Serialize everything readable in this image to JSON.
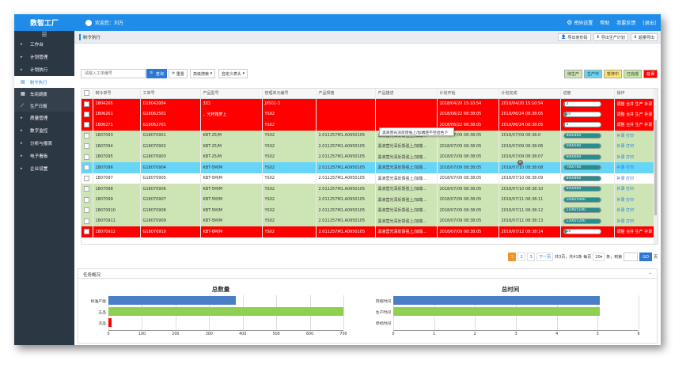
{
  "app": {
    "title": "数智工厂",
    "welcome": "欢迎您：刘万",
    "links": [
      "密码设置",
      "帮助",
      "我要反馈",
      "[退出]"
    ]
  },
  "sidebar": {
    "items": [
      {
        "label": "工作台"
      },
      {
        "label": "计划管理"
      },
      {
        "label": "计划执行",
        "expanded": true
      }
    ],
    "subitems": [
      {
        "label": "制令执行",
        "icon": "document-icon",
        "active": true
      },
      {
        "label": "车间调拨",
        "icon": "clipboard-icon"
      },
      {
        "label": "生产日报",
        "icon": "chart-line-icon"
      }
    ],
    "items2": [
      {
        "label": "质量管理"
      },
      {
        "label": "数字监控"
      },
      {
        "label": "分析与报表"
      },
      {
        "label": "电子看板"
      },
      {
        "label": "企业设置"
      }
    ]
  },
  "breadcrumb": "制令执行",
  "toolbar": {
    "export_sn": "导出条形码",
    "export_plan": "导出生产计划",
    "export_ahead": "超量导出"
  },
  "search": {
    "placeholder": "请输入工单编号",
    "query": "查询",
    "reset": "重置",
    "advanced": "高级搜索",
    "custom_header": "自定义表头"
  },
  "status_legend": [
    {
      "label": "待生产",
      "bg": "#cde5b5",
      "fg": "#333"
    },
    {
      "label": "生产中",
      "bg": "#66d5f7",
      "fg": "#333"
    },
    {
      "label": "暂停中",
      "bg": "#ffe26b",
      "fg": "#333"
    },
    {
      "label": "已完成",
      "bg": "#c5e7a6",
      "fg": "#333"
    },
    {
      "label": "延误",
      "bg": "#ff0000",
      "fg": "#fff"
    }
  ],
  "table": {
    "headers": [
      "制令单号",
      "工单号",
      "产品型号",
      "管理单元编号",
      "产品规格",
      "产品描述",
      "计划开始",
      "计划完成",
      "进度",
      "操作"
    ],
    "rows": [
      {
        "status": "red",
        "c": [
          "1804205",
          "D18042004",
          "333",
          "",
          "JXS01-3",
          "",
          "",
          "2018/04/20 15:10:54",
          "2018/04/20 15:10:54"
        ],
        "progress": "2",
        "pct": 4,
        "ops": "调整 合并 生产 补录 打印"
      },
      {
        "status": "red",
        "c": [
          "1806261",
          "G18062501",
          "，光杯箱萝上",
          "",
          "YS02",
          "",
          "",
          "2018/06/22 08:38:05",
          "2018/06/24 08:38:05"
        ],
        "progress": "10",
        "pct": 8,
        "ops": "调整 合并 生产 补录 打印"
      },
      {
        "status": "red",
        "c": [
          "1806271",
          "G18062701",
          "",
          "",
          "YS02",
          "",
          "",
          "2018/06/22 08:38:05",
          "2018/06/24 08:38:05"
        ],
        "progress": "2",
        "pct": 4,
        "ops": "调整 合并 生产 补录 打印"
      },
      {
        "status": "green",
        "c": [
          "1807093",
          "G18070901",
          "KBT-25/M",
          "",
          "YS02",
          "2.011257M1.A0950105",
          "黑液营光深反馈强上/加端...",
          "2018/07/09 08:38:05",
          "2018/07/09 08:38:0"
        ],
        "progress": "400/400",
        "pct": 100,
        "ops": "补录 打印"
      },
      {
        "status": "green",
        "c": [
          "1807094",
          "G18070902",
          "KBT-25/M",
          "",
          "YS02",
          "2.011257M1.A0950105",
          "黑液营光深反馈强上/加端...",
          "2018/07/09 08:38:05",
          "2018/07/09 08:38:06"
        ],
        "progress": "500/500",
        "pct": 100,
        "ops": "补录 打印"
      },
      {
        "status": "green",
        "c": [
          "1807095",
          "G18070903",
          "KBT-25/M",
          "",
          "YS02",
          "2.011257M1.A0950105",
          "黑液营光深反馈强上/加端...",
          "2018/07/09 08:38:05",
          "2018/07/09 08:38:07"
        ],
        "progress": "600/600",
        "pct": 100,
        "ops": "补录 打印"
      },
      {
        "status": "blue",
        "c": [
          "1807096",
          "G18070904",
          "KBT-5M/M",
          "",
          "YS02",
          "2.011257M1.A0950105",
          "黑液营光深反馈强上/加端...",
          "2018/07/09 08:38:05",
          "2018/07/10 08:38:08"
        ],
        "progress": "700/700",
        "pct": 100,
        "ops": "补录 打印"
      },
      {
        "status": "white",
        "c": [
          "1807097",
          "G18070905",
          "KBT-5M/M",
          "",
          "YS02",
          "2.011257M1.A0950105",
          "黑液营光深反馈强上/加端...",
          "2018/07/09 08:38:05",
          "2018/07/10 08:38:09"
        ],
        "progress": "800/800",
        "pct": 100,
        "ops": "补录 打印"
      },
      {
        "status": "green",
        "c": [
          "1807098",
          "G18070906",
          "KBT-5M/M",
          "",
          "YS02",
          "2.011257M1.A0950105",
          "黑液营光深反馈强上/加端...",
          "2018/07/09 08:38:05",
          "2018/07/10 08:38:10"
        ],
        "progress": "900/900",
        "pct": 100,
        "ops": "补录 打印"
      },
      {
        "status": "green",
        "c": [
          "1807099",
          "G18070907",
          "KBT-5M/M",
          "",
          "YS02",
          "2.011257M1.A0950105",
          "黑液营光深反馈强上/加端...",
          "2018/07/09 08:38:05",
          "2018/07/11 08:38:11"
        ],
        "progress": "1000/1000",
        "pct": 100,
        "ops": "补录 打印"
      },
      {
        "status": "green",
        "c": [
          "18070910",
          "G18070908",
          "KBT-5M/M",
          "",
          "YS02",
          "2.011257M1.A0950105",
          "黑液营光深反馈强上/加端...",
          "2018/07/09 08:38:05",
          "2018/07/11 08:38:12"
        ],
        "progress": "1100/1100",
        "pct": 100,
        "ops": "补录 打印"
      },
      {
        "status": "green",
        "c": [
          "18070911",
          "G18070909",
          "KBT-5M/M",
          "",
          "YS02",
          "2.011257M1.A0950105",
          "黑液营光深反馈强上/加端...",
          "2018/07/09 08:38:05",
          "2018/07/11 08:38:13"
        ],
        "progress": "1200/1200",
        "pct": 100,
        "ops": "补录 打印"
      },
      {
        "status": "red",
        "c": [
          "18070912",
          "G18070910",
          "KBT-6M/M",
          "",
          "YS02",
          "2.011257M1.A0950105",
          "黑液营光深反馈强上/加端...",
          "2018/07/09 08:38:05",
          "2018/07/12 08:38:14"
        ],
        "progress": "10",
        "pct": 8,
        "ops": "调整 合并 生产 补录 打印"
      }
    ]
  },
  "tooltip": "黑液营光深反馈强上/加端连不空迹色下",
  "pager": {
    "pages": [
      "1",
      "2",
      "3"
    ],
    "next": "下一页",
    "summary": "共3页，共41条 每页",
    "per_page": "20",
    "goto_label": "条，到第",
    "go": "GO",
    "suffix": "页"
  },
  "overview": {
    "title": "任务概况"
  },
  "chart_data": [
    {
      "type": "bar",
      "orientation": "horizontal",
      "title": "总数量",
      "categories": [
        "标准产能",
        "正品",
        "次品"
      ],
      "values": [
        380,
        700,
        10
      ],
      "colors": [
        "#4a7fc6",
        "#90d050",
        "#ff0000"
      ],
      "xlim": [
        0,
        700
      ],
      "xticks": [
        0,
        100,
        200,
        300,
        400,
        500,
        600,
        700
      ]
    },
    {
      "type": "bar",
      "orientation": "horizontal",
      "title": "总时间",
      "categories": [
        "持续时间",
        "生产时间",
        "停机时间"
      ],
      "values": [
        5.05,
        5.05,
        0
      ],
      "colors": [
        "#4a7fc6",
        "#90d050",
        "#ff0000"
      ],
      "xlim": [
        0,
        6
      ],
      "xticks": [
        0,
        1,
        2,
        3,
        4,
        5,
        6
      ]
    }
  ]
}
